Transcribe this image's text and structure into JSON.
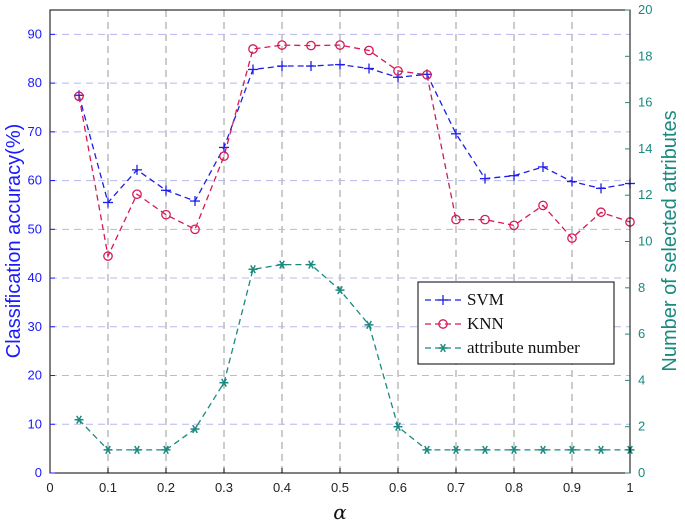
{
  "chart_data": {
    "type": "line",
    "xlabel": "α",
    "ylabel_left": "Classification accuracy(%)",
    "ylabel_right": "Number of selected attributes",
    "xlim": [
      0,
      1
    ],
    "ylim_left": [
      0,
      95
    ],
    "ylim_right": [
      0,
      20
    ],
    "grid": true,
    "legend_position": "center-right",
    "x_ticks": [
      "0",
      "0.1",
      "0.2",
      "0.3",
      "0.4",
      "0.5",
      "0.6",
      "0.7",
      "0.8",
      "0.9",
      "1"
    ],
    "y_left_ticks": [
      "0",
      "10",
      "20",
      "30",
      "40",
      "50",
      "60",
      "70",
      "80",
      "90"
    ],
    "y_right_ticks": [
      "0",
      "2",
      "4",
      "6",
      "8",
      "10",
      "12",
      "14",
      "16",
      "18",
      "20"
    ],
    "x": [
      0.05,
      0.1,
      0.15,
      0.2,
      0.25,
      0.3,
      0.35,
      0.4,
      0.45,
      0.5,
      0.55,
      0.6,
      0.65,
      0.7,
      0.75,
      0.8,
      0.85,
      0.9,
      0.95,
      1.0
    ],
    "series": [
      {
        "name": "SVM",
        "axis": "left",
        "color": "#1f1fe6",
        "marker": "plus",
        "values": [
          77.5,
          55.5,
          62.2,
          58.0,
          55.8,
          66.8,
          82.8,
          83.5,
          83.5,
          83.8,
          83.0,
          81.2,
          81.8,
          69.6,
          60.4,
          61.0,
          62.8,
          59.8,
          58.4,
          59.4
        ]
      },
      {
        "name": "KNN",
        "axis": "left",
        "color": "#d61a55",
        "marker": "circle",
        "values": [
          77.3,
          44.5,
          57.2,
          53.0,
          50.0,
          65.0,
          87.0,
          87.8,
          87.7,
          87.8,
          86.7,
          82.5,
          81.7,
          52.0,
          52.0,
          50.8,
          54.9,
          48.2,
          53.5,
          51.5
        ]
      },
      {
        "name": "attribute number",
        "axis": "right",
        "color": "#1a8a80",
        "marker": "asterisk",
        "values": [
          2.3,
          1.0,
          1.0,
          1.0,
          1.9,
          3.9,
          8.8,
          9.0,
          9.0,
          7.9,
          6.4,
          2.0,
          1.0,
          1.0,
          1.0,
          1.0,
          1.0,
          1.0,
          1.0,
          1.0
        ]
      }
    ]
  }
}
